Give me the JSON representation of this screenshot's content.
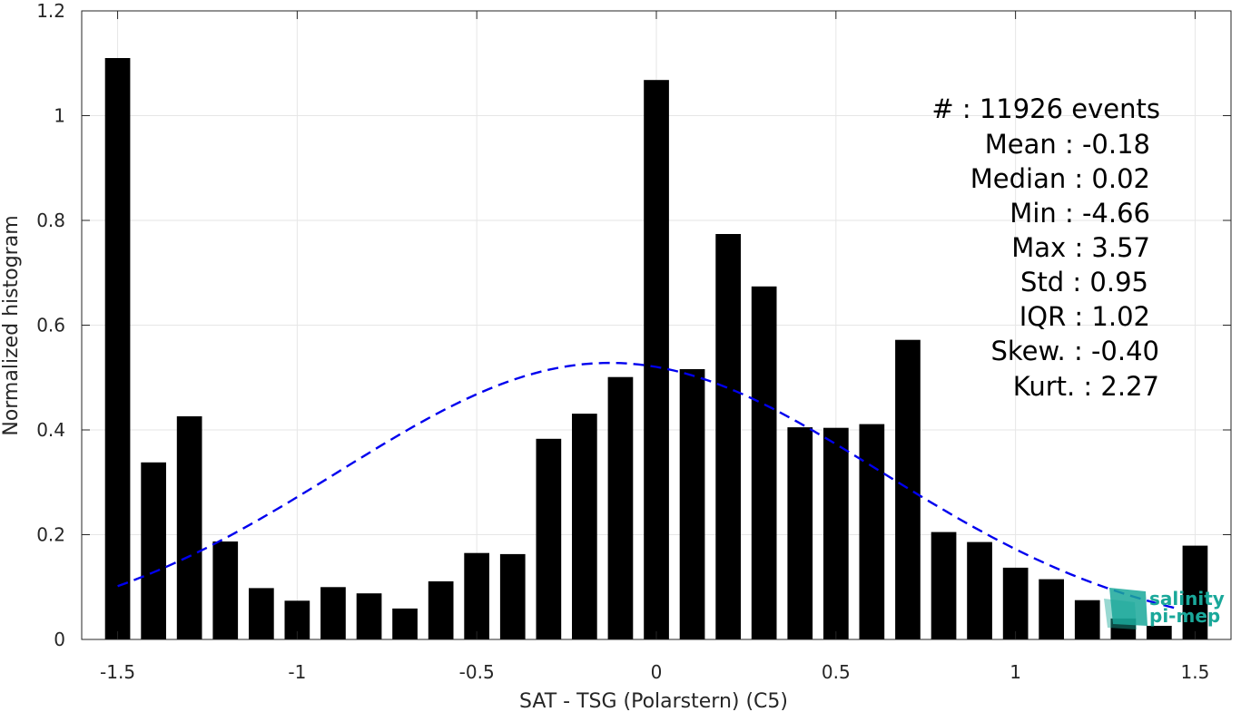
{
  "chart_data": {
    "type": "bar",
    "xlabel": "SAT - TSG (Polarstern) (C5)",
    "ylabel": "Normalized histogram",
    "xlim": [
      -1.6,
      1.6
    ],
    "ylim": [
      0,
      1.2
    ],
    "grid": true,
    "x_ticks": [
      -1.5,
      -1,
      -0.5,
      0,
      0.5,
      1,
      1.5
    ],
    "x_tick_labels": [
      "-1.5",
      "-1",
      "-0.5",
      "0",
      "0.5",
      "1",
      "1.5"
    ],
    "y_ticks": [
      0,
      0.2,
      0.4,
      0.6,
      0.8,
      1,
      1.2
    ],
    "y_tick_labels": [
      "0",
      "0.2",
      "0.4",
      "0.6",
      "0.8",
      "1",
      "1.2"
    ],
    "bin_width": 0.1,
    "x": [
      -1.5,
      -1.4,
      -1.3,
      -1.2,
      -1.1,
      -1.0,
      -0.9,
      -0.8,
      -0.7,
      -0.6,
      -0.5,
      -0.4,
      -0.3,
      -0.2,
      -0.1,
      0.0,
      0.1,
      0.2,
      0.3,
      0.4,
      0.5,
      0.6,
      0.7,
      0.8,
      0.9,
      1.0,
      1.1,
      1.2,
      1.3,
      1.4,
      1.5
    ],
    "values": [
      1.11,
      0.338,
      0.426,
      0.187,
      0.098,
      0.074,
      0.1,
      0.088,
      0.059,
      0.111,
      0.165,
      0.163,
      0.383,
      0.431,
      0.501,
      1.068,
      0.516,
      0.774,
      0.674,
      0.405,
      0.404,
      0.411,
      0.572,
      0.205,
      0.186,
      0.137,
      0.115,
      0.075,
      0.04,
      0.026,
      0.179
    ],
    "bar_color": "#000000",
    "fit_curve": {
      "style": "dashed",
      "color": "#0000ee",
      "mean": -0.13,
      "std": 0.755,
      "peak": 0.528,
      "x_range": [
        -1.5,
        1.45
      ]
    },
    "stats": [
      {
        "label": "#",
        "sep": " : ",
        "value": "11926 events"
      },
      {
        "label": "Mean",
        "sep": " : ",
        "value": "-0.18"
      },
      {
        "label": "Median",
        "sep": " : ",
        "value": "0.02"
      },
      {
        "label": "Min",
        "sep": " : ",
        "value": "-4.66"
      },
      {
        "label": "Max",
        "sep": " : ",
        "value": "3.57"
      },
      {
        "label": "Std",
        "sep": " : ",
        "value": "0.95"
      },
      {
        "label": "IQR",
        "sep": " : ",
        "value": "1.02"
      },
      {
        "label": "Skew.",
        "sep": " : ",
        "value": "-0.40"
      },
      {
        "label": "Kurt.",
        "sep": " : ",
        "value": "2.27"
      }
    ]
  },
  "logo": {
    "line1": "salinity",
    "line2": "pi-mep",
    "color": "#1aa89a"
  }
}
